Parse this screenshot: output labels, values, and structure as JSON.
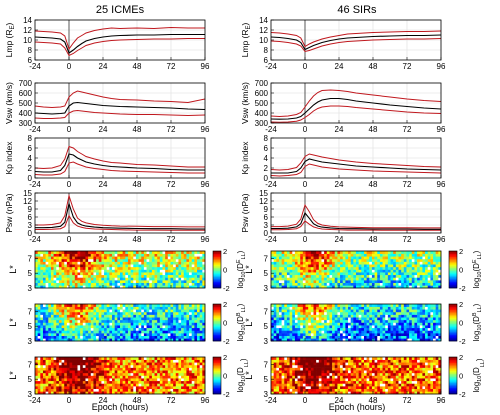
{
  "chart_data": {
    "type": "line",
    "columns": [
      {
        "key": "icme",
        "title": "25 ICMEs",
        "colorbar_position": "left"
      },
      {
        "key": "sir",
        "title": "46 SIRs",
        "colorbar_position": "right"
      }
    ],
    "x": {
      "label": "Epoch (hours)",
      "range": [
        -24,
        96
      ],
      "ticks": [
        -24,
        0,
        24,
        48,
        72,
        96
      ],
      "ticklabels": [
        "-24",
        "0",
        "24",
        "48",
        "72",
        "96"
      ],
      "sample_hours": [
        -24,
        -18,
        -12,
        -6,
        -3,
        0,
        3,
        6,
        9,
        12,
        18,
        24,
        30,
        36,
        48,
        60,
        72,
        84,
        96
      ]
    },
    "grid": true,
    "line_colors": {
      "median": "#000000",
      "quartiles": "#c0181e",
      "epoch_marker": "#333333"
    },
    "panels": [
      {
        "key": "lmp",
        "ylabel_main": "Lmp (R",
        "ylabel_sub": "E",
        "ylabel_close": ")",
        "ylim": [
          6,
          14
        ],
        "ticks": [
          6,
          8,
          10,
          12,
          14
        ],
        "ticklabels": [
          "6",
          "8",
          "10",
          "12",
          "14"
        ],
        "icme": {
          "median": [
            10.6,
            10.5,
            10.4,
            10.2,
            9.6,
            7.4,
            8.0,
            8.7,
            9.3,
            9.8,
            10.3,
            10.6,
            10.8,
            10.9,
            11.0,
            11.0,
            11.1,
            11.1,
            11.1
          ],
          "upper": [
            11.8,
            11.7,
            11.6,
            11.4,
            10.8,
            8.2,
            9.4,
            10.4,
            10.9,
            11.4,
            11.9,
            12.2,
            12.4,
            12.3,
            12.4,
            12.3,
            12.5,
            12.4,
            12.4
          ],
          "lower": [
            9.6,
            9.5,
            9.4,
            9.2,
            8.4,
            6.9,
            7.3,
            7.9,
            8.4,
            8.9,
            9.4,
            9.7,
            9.9,
            10.0,
            10.1,
            10.2,
            10.2,
            10.3,
            10.3
          ]
        },
        "sir": {
          "median": [
            10.6,
            10.5,
            10.3,
            10.0,
            9.5,
            8.1,
            8.5,
            8.9,
            9.2,
            9.5,
            9.9,
            10.2,
            10.4,
            10.5,
            10.7,
            10.8,
            10.9,
            10.9,
            11.0
          ],
          "upper": [
            11.5,
            11.4,
            11.2,
            10.9,
            10.4,
            8.7,
            9.2,
            9.6,
            9.9,
            10.2,
            10.6,
            10.9,
            11.2,
            11.3,
            11.5,
            11.6,
            11.7,
            11.7,
            11.8
          ],
          "lower": [
            9.8,
            9.7,
            9.5,
            9.2,
            8.8,
            7.7,
            7.9,
            8.2,
            8.5,
            8.8,
            9.2,
            9.5,
            9.7,
            9.8,
            10.0,
            10.1,
            10.2,
            10.2,
            10.3
          ]
        }
      },
      {
        "key": "vsw",
        "ylabel_main": "Vsw (km/s)",
        "ylim": [
          300,
          700
        ],
        "ticks": [
          300,
          400,
          500,
          600,
          700
        ],
        "ticklabels": [
          "300",
          "400",
          "500",
          "600",
          "700"
        ],
        "icme": {
          "median": [
            400,
            395,
            390,
            395,
            400,
            470,
            500,
            505,
            500,
            495,
            485,
            475,
            470,
            465,
            460,
            455,
            450,
            440,
            435
          ],
          "upper": [
            470,
            460,
            455,
            460,
            470,
            560,
            600,
            620,
            610,
            600,
            580,
            560,
            545,
            535,
            530,
            520,
            515,
            505,
            540
          ],
          "lower": [
            350,
            345,
            345,
            350,
            355,
            400,
            420,
            425,
            420,
            415,
            405,
            400,
            395,
            390,
            385,
            385,
            380,
            375,
            380
          ]
        },
        "sir": {
          "median": [
            340,
            338,
            340,
            350,
            365,
            400,
            440,
            480,
            510,
            530,
            545,
            545,
            535,
            520,
            500,
            480,
            465,
            450,
            440
          ],
          "upper": [
            370,
            365,
            370,
            385,
            405,
            460,
            520,
            570,
            605,
            625,
            630,
            625,
            615,
            600,
            580,
            560,
            540,
            525,
            515
          ],
          "lower": [
            310,
            308,
            310,
            318,
            330,
            355,
            385,
            420,
            445,
            460,
            470,
            470,
            465,
            455,
            440,
            425,
            410,
            400,
            395
          ]
        }
      },
      {
        "key": "kp",
        "ylabel_main": "Kp index",
        "ylim": [
          0,
          8
        ],
        "ticks": [
          0,
          2,
          4,
          6,
          8
        ],
        "ticklabels": [
          "0",
          "2",
          "4",
          "6",
          "8"
        ],
        "icme": {
          "median": [
            1.3,
            1.2,
            1.2,
            1.5,
            2.5,
            4.8,
            4.6,
            4.0,
            3.6,
            3.2,
            2.8,
            2.5,
            2.3,
            2.2,
            2.0,
            1.9,
            1.7,
            1.6,
            1.6
          ],
          "upper": [
            2.0,
            1.9,
            2.0,
            2.5,
            3.8,
            6.3,
            6.0,
            5.3,
            4.8,
            4.3,
            3.8,
            3.4,
            3.1,
            3.0,
            2.7,
            2.6,
            2.4,
            2.2,
            2.2
          ],
          "lower": [
            0.7,
            0.6,
            0.6,
            0.8,
            1.3,
            3.0,
            3.2,
            2.8,
            2.5,
            2.2,
            1.9,
            1.7,
            1.5,
            1.4,
            1.3,
            1.2,
            1.1,
            1.0,
            1.0
          ]
        },
        "sir": {
          "median": [
            1.0,
            1.0,
            1.0,
            1.3,
            2.0,
            3.3,
            3.8,
            3.6,
            3.4,
            3.2,
            3.0,
            2.8,
            2.6,
            2.4,
            2.2,
            2.0,
            1.8,
            1.7,
            1.6
          ],
          "upper": [
            1.7,
            1.6,
            1.7,
            2.1,
            3.0,
            4.3,
            4.8,
            4.6,
            4.4,
            4.2,
            3.9,
            3.6,
            3.4,
            3.2,
            2.9,
            2.7,
            2.5,
            2.3,
            2.2
          ],
          "lower": [
            0.5,
            0.4,
            0.5,
            0.7,
            1.1,
            2.3,
            2.8,
            2.6,
            2.4,
            2.2,
            2.0,
            1.8,
            1.7,
            1.6,
            1.4,
            1.3,
            1.2,
            1.1,
            1.0
          ]
        }
      },
      {
        "key": "psw",
        "ylabel_main": "Psw (nPa)",
        "ylim": [
          0,
          15
        ],
        "ticks": [
          0,
          3,
          6,
          9,
          12,
          15
        ],
        "ticklabels": [
          "0",
          "3",
          "6",
          "9",
          "12",
          "15"
        ],
        "icme": {
          "median": [
            2.0,
            2.0,
            2.1,
            2.5,
            4.0,
            11.0,
            6.0,
            3.8,
            3.0,
            2.6,
            2.2,
            2.0,
            1.9,
            1.8,
            1.7,
            1.6,
            1.6,
            1.5,
            1.5
          ],
          "upper": [
            3.0,
            3.0,
            3.2,
            3.8,
            6.5,
            14.0,
            9.0,
            5.6,
            4.4,
            3.8,
            3.2,
            2.9,
            2.7,
            2.6,
            2.5,
            2.4,
            2.4,
            2.3,
            2.3
          ],
          "lower": [
            1.3,
            1.3,
            1.4,
            1.6,
            2.4,
            6.5,
            3.8,
            2.6,
            2.1,
            1.8,
            1.5,
            1.4,
            1.3,
            1.2,
            1.1,
            1.1,
            1.0,
            1.0,
            1.0
          ]
        },
        "sir": {
          "median": [
            1.7,
            1.7,
            1.8,
            2.3,
            3.5,
            7.5,
            5.5,
            3.5,
            2.6,
            2.2,
            1.9,
            1.7,
            1.6,
            1.6,
            1.5,
            1.5,
            1.5,
            1.4,
            1.4
          ],
          "upper": [
            2.4,
            2.4,
            2.6,
            3.3,
            5.2,
            10.5,
            8.0,
            5.0,
            3.6,
            3.0,
            2.5,
            2.3,
            2.2,
            2.1,
            2.0,
            2.0,
            2.0,
            1.9,
            1.9
          ],
          "lower": [
            1.2,
            1.2,
            1.3,
            1.6,
            2.4,
            4.5,
            3.3,
            2.3,
            1.8,
            1.5,
            1.3,
            1.2,
            1.1,
            1.1,
            1.1,
            1.0,
            1.0,
            1.0,
            1.0
          ]
        }
      }
    ],
    "heatmaps": {
      "type": "heatmap",
      "ylabel": "L*",
      "y_ticks": [
        3,
        5,
        7
      ],
      "y_range": [
        3,
        8
      ],
      "colorbar": {
        "range": [
          -2,
          2
        ],
        "ticks": [
          -2,
          0,
          2
        ],
        "ticklabels": [
          "-2",
          "0",
          "2"
        ],
        "colormap": [
          "#00008f",
          "#0000ff",
          "#007fff",
          "#00ffff",
          "#7fff7f",
          "#ffff00",
          "#ff7f00",
          "#ff0000",
          "#800000"
        ]
      },
      "panels": [
        {
          "key": "dee",
          "cblabel_main": "log",
          "cblabel_sub": "10",
          "cblabel_rest": "(D",
          "cblabel_sup": "E",
          "cblabel_sup_sub": "LL",
          "cblabel_close": ")",
          "icme_mean_level": -0.3,
          "sir_mean_level": -0.6
        },
        {
          "key": "dbe",
          "cblabel_main": "log",
          "cblabel_sub": "10",
          "cblabel_rest": "(D",
          "cblabel_sup": "B",
          "cblabel_sup_sub": "LL",
          "cblabel_close": ")",
          "icme_mean_level": -1.0,
          "sir_mean_level": -1.2
        },
        {
          "key": "dtot",
          "cblabel_main": "log",
          "cblabel_sub": "10",
          "cblabel_rest": "(D",
          "cblabel_sup": "",
          "cblabel_sup_sub": "LL",
          "cblabel_close": ")",
          "icme_mean_level": 1.0,
          "sir_mean_level": 1.1
        }
      ]
    }
  }
}
